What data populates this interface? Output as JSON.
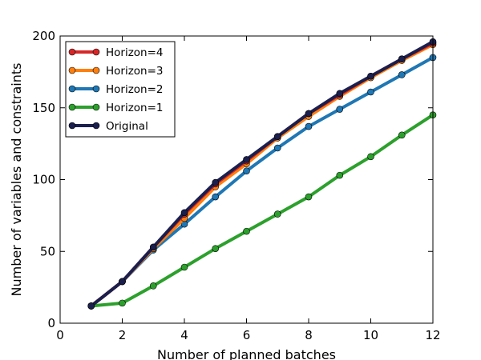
{
  "chart_data": {
    "type": "line",
    "title": "",
    "xlabel": "Number of planned batches",
    "ylabel": "Number of variables and constraints",
    "xlim": [
      0,
      12
    ],
    "ylim": [
      0,
      200
    ],
    "xticks": [
      0,
      2,
      4,
      6,
      8,
      10,
      12
    ],
    "yticks": [
      0,
      50,
      100,
      150,
      200
    ],
    "grid": false,
    "legend_position": "top-left",
    "x": [
      1,
      2,
      3,
      4,
      5,
      6,
      7,
      8,
      9,
      10,
      11,
      12
    ],
    "series": [
      {
        "name": "Horizon=4",
        "color": "#d62728",
        "values": [
          12,
          29,
          53,
          76,
          97,
          113,
          130,
          146,
          159,
          172,
          184,
          195
        ]
      },
      {
        "name": "Horizon=3",
        "color": "#ff7f0e",
        "values": [
          12,
          29,
          52,
          73,
          95,
          111,
          129,
          144,
          158,
          171,
          183,
          194
        ]
      },
      {
        "name": "Horizon=2",
        "color": "#1f77b4",
        "values": [
          12,
          29,
          51,
          69,
          88,
          106,
          122,
          137,
          149,
          161,
          173,
          185
        ]
      },
      {
        "name": "Horizon=1",
        "color": "#2ca02c",
        "values": [
          12,
          14,
          26,
          39,
          52,
          64,
          76,
          88,
          103,
          116,
          131,
          145
        ]
      },
      {
        "name": "Original",
        "color": "#1a1f4e",
        "values": [
          12,
          29,
          53,
          77,
          98,
          114,
          130,
          146,
          160,
          172,
          184,
          196
        ]
      }
    ]
  }
}
